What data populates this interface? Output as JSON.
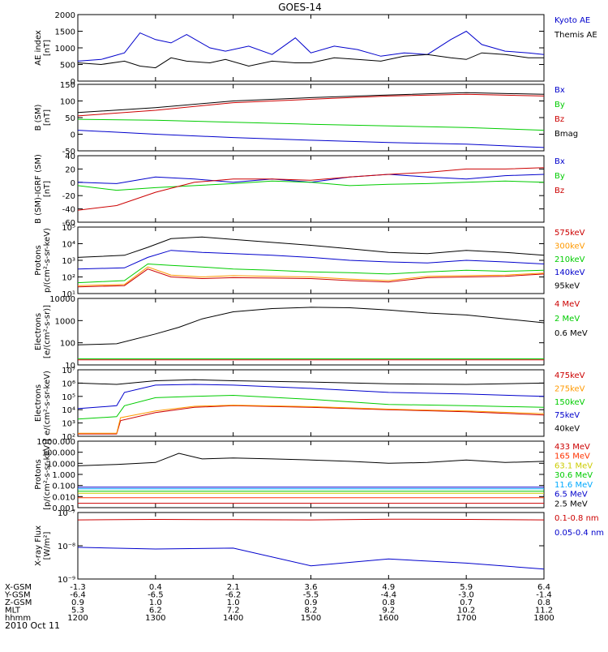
{
  "title": "GOES-14",
  "date_label": "2010 Oct 11",
  "chart_data": [
    {
      "type": "line",
      "id": "ae",
      "ylabel": [
        "AE index",
        "[nT]"
      ],
      "ylim": [
        0,
        2000
      ],
      "yticks": [
        "0",
        "500",
        "1000",
        "1500",
        "2000"
      ],
      "ytick_values": [
        0,
        500,
        1000,
        1500,
        2000
      ],
      "log": false,
      "series": [
        {
          "name": "Kyoto AE",
          "color": "#0000cc",
          "x": [
            12.0,
            12.3,
            12.6,
            12.8,
            13.0,
            13.2,
            13.4,
            13.7,
            13.9,
            14.2,
            14.5,
            14.8,
            15.0,
            15.3,
            15.6,
            15.9,
            16.2,
            16.5,
            16.8,
            17.0,
            17.2,
            17.5,
            17.8,
            18.0
          ],
          "values": [
            600,
            650,
            850,
            1450,
            1250,
            1150,
            1400,
            1000,
            900,
            1050,
            800,
            1300,
            850,
            1050,
            950,
            750,
            850,
            800,
            1250,
            1500,
            1100,
            900,
            850,
            800
          ]
        },
        {
          "name": "Themis AE",
          "color": "#000000",
          "x": [
            12.0,
            12.3,
            12.6,
            12.8,
            13.0,
            13.2,
            13.4,
            13.7,
            13.9,
            14.2,
            14.5,
            14.8,
            15.0,
            15.3,
            15.6,
            15.9,
            16.2,
            16.5,
            16.8,
            17.0,
            17.2,
            17.5,
            17.8,
            18.0
          ],
          "values": [
            550,
            500,
            600,
            450,
            400,
            700,
            600,
            550,
            650,
            450,
            600,
            550,
            550,
            700,
            650,
            600,
            750,
            800,
            700,
            650,
            850,
            800,
            700,
            700
          ]
        }
      ]
    },
    {
      "type": "line",
      "id": "bsm",
      "ylabel": [
        "B (SM)",
        "[nT]"
      ],
      "ylim": [
        -50,
        150
      ],
      "yticks": [
        "-50",
        "0",
        "50",
        "100",
        "150"
      ],
      "ytick_values": [
        -50,
        0,
        50,
        100,
        150
      ],
      "log": false,
      "series": [
        {
          "name": "Bx",
          "color": "#0000cc",
          "x": [
            12,
            13,
            14,
            15,
            16,
            17,
            18
          ],
          "values": [
            12,
            0,
            -10,
            -18,
            -25,
            -30,
            -40
          ]
        },
        {
          "name": "By",
          "color": "#00cc00",
          "x": [
            12,
            13,
            14,
            15,
            16,
            17,
            18
          ],
          "values": [
            45,
            42,
            36,
            30,
            25,
            20,
            12
          ]
        },
        {
          "name": "Bz",
          "color": "#cc0000",
          "x": [
            12,
            13,
            14,
            15,
            16,
            17,
            18
          ],
          "values": [
            55,
            72,
            95,
            105,
            115,
            120,
            115
          ]
        },
        {
          "name": "Bmag",
          "color": "#000000",
          "x": [
            12,
            13,
            14,
            15,
            16,
            17,
            18
          ],
          "values": [
            65,
            80,
            100,
            110,
            118,
            125,
            120
          ]
        }
      ]
    },
    {
      "type": "line",
      "id": "bdiff",
      "ylabel": [
        "B (SM)-IGRF (SM)",
        "[nT]"
      ],
      "ylim": [
        -60,
        40
      ],
      "yticks": [
        "-60",
        "-40",
        "-20",
        "0",
        "20",
        "40"
      ],
      "ytick_values": [
        -60,
        -40,
        -20,
        0,
        20,
        40
      ],
      "log": false,
      "series": [
        {
          "name": "Bx",
          "color": "#0000cc",
          "x": [
            12,
            12.5,
            13,
            13.5,
            14,
            14.5,
            15,
            15.5,
            16,
            16.5,
            17,
            17.5,
            18
          ],
          "values": [
            0,
            -2,
            8,
            5,
            0,
            5,
            0,
            8,
            12,
            8,
            5,
            10,
            12
          ]
        },
        {
          "name": "By",
          "color": "#00cc00",
          "x": [
            12,
            12.5,
            13,
            13.5,
            14,
            14.5,
            15,
            15.5,
            16,
            16.5,
            17,
            17.5,
            18
          ],
          "values": [
            -5,
            -12,
            -8,
            -5,
            -2,
            2,
            0,
            -5,
            -3,
            -2,
            0,
            2,
            0
          ]
        },
        {
          "name": "Bz",
          "color": "#cc0000",
          "x": [
            12,
            12.5,
            13,
            13.5,
            14,
            14.5,
            15,
            15.5,
            16,
            16.5,
            17,
            17.5,
            18
          ],
          "values": [
            -42,
            -35,
            -15,
            0,
            5,
            5,
            3,
            8,
            12,
            15,
            20,
            20,
            22
          ]
        }
      ]
    },
    {
      "type": "line",
      "id": "protons_kev",
      "ylabel": [
        "Protons",
        "p/(cm²-s-sr-keV)"
      ],
      "ylim": [
        10,
        100000
      ],
      "yticks": [
        "10¹",
        "10²",
        "10³",
        "10⁴",
        "10⁵"
      ],
      "ytick_values": [
        10,
        100,
        1000,
        10000,
        100000
      ],
      "log": true,
      "series": [
        {
          "name": "575keV",
          "color": "#cc0000",
          "x": [
            12,
            12.6,
            12.9,
            13.2,
            13.6,
            14,
            14.5,
            15,
            15.5,
            16,
            16.5,
            17,
            17.5,
            18
          ],
          "values": [
            25,
            30,
            300,
            100,
            80,
            90,
            85,
            80,
            60,
            50,
            90,
            100,
            110,
            150
          ]
        },
        {
          "name": "300keV",
          "color": "#ff9900",
          "x": [
            12,
            12.6,
            12.9,
            13.2,
            13.6,
            14,
            14.5,
            15,
            15.5,
            16,
            16.5,
            17,
            17.5,
            18
          ],
          "values": [
            30,
            35,
            400,
            130,
            100,
            120,
            110,
            100,
            75,
            60,
            110,
            120,
            130,
            170
          ]
        },
        {
          "name": "210keV",
          "color": "#00cc00",
          "x": [
            12,
            12.6,
            12.9,
            13.2,
            13.6,
            14,
            14.5,
            15,
            15.5,
            16,
            16.5,
            17,
            17.5,
            18
          ],
          "values": [
            45,
            60,
            600,
            500,
            400,
            300,
            250,
            200,
            180,
            150,
            200,
            250,
            220,
            250
          ]
        },
        {
          "name": "140keV",
          "color": "#0000cc",
          "x": [
            12,
            12.6,
            12.9,
            13.2,
            13.6,
            14,
            14.5,
            15,
            15.5,
            16,
            16.5,
            17,
            17.5,
            18
          ],
          "values": [
            300,
            350,
            1500,
            4000,
            3000,
            2500,
            2000,
            1500,
            1000,
            800,
            700,
            1000,
            800,
            600
          ]
        },
        {
          "name": "95keV",
          "color": "#000000",
          "x": [
            12,
            12.6,
            12.9,
            13.2,
            13.6,
            14,
            14.5,
            15,
            15.5,
            16,
            16.5,
            17,
            17.5,
            18
          ],
          "values": [
            1500,
            2000,
            6000,
            20000,
            25000,
            18000,
            12000,
            8000,
            5000,
            3000,
            2500,
            4000,
            3000,
            2000
          ]
        }
      ]
    },
    {
      "type": "line",
      "id": "electrons_mev",
      "ylabel": [
        "Electrons",
        "[e/(cm²-s-sr)]"
      ],
      "ylim": [
        10,
        10000
      ],
      "yticks": [
        "10",
        "100",
        "1000",
        "10000"
      ],
      "ytick_values": [
        10,
        100,
        1000,
        10000
      ],
      "log": true,
      "series": [
        {
          "name": "4 MeV",
          "color": "#cc0000",
          "x": [
            12,
            18
          ],
          "values": [
            17,
            17
          ]
        },
        {
          "name": "2 MeV",
          "color": "#00cc00",
          "x": [
            12,
            18
          ],
          "values": [
            19,
            19
          ]
        },
        {
          "name": "0.6 MeV",
          "color": "#000000",
          "x": [
            12,
            12.5,
            13,
            13.3,
            13.6,
            14,
            14.5,
            15,
            15.5,
            16,
            16.5,
            17,
            17.5,
            18
          ],
          "values": [
            80,
            90,
            250,
            500,
            1200,
            2500,
            3500,
            4000,
            3800,
            3000,
            2200,
            1800,
            1200,
            800
          ]
        }
      ]
    },
    {
      "type": "line",
      "id": "electrons_kev",
      "ylabel": [
        "Electrons",
        "e/(cm²-s-sr-keV)"
      ],
      "ylim": [
        100,
        10000000
      ],
      "yticks": [
        "10²",
        "10³",
        "10⁴",
        "10⁵",
        "10⁶",
        "10⁷"
      ],
      "ytick_values": [
        100,
        1000,
        10000,
        100000,
        1000000,
        10000000
      ],
      "log": true,
      "series": [
        {
          "name": "475keV",
          "color": "#cc0000",
          "x": [
            12,
            12.5,
            12.55,
            13,
            13.5,
            14,
            15,
            16,
            17,
            18
          ],
          "values": [
            150,
            150,
            1500,
            6000,
            15000,
            20000,
            15000,
            10000,
            7000,
            4000
          ]
        },
        {
          "name": "275keV",
          "color": "#ff9900",
          "x": [
            12,
            12.5,
            12.55,
            13,
            13.5,
            14,
            15,
            16,
            17,
            18
          ],
          "values": [
            170,
            170,
            2500,
            8000,
            18000,
            22000,
            17000,
            11000,
            8000,
            5000
          ]
        },
        {
          "name": "150keV",
          "color": "#00cc00",
          "x": [
            12,
            12.5,
            12.6,
            13,
            13.5,
            14,
            15,
            16,
            17,
            18
          ],
          "values": [
            2000,
            3000,
            20000,
            80000,
            100000,
            120000,
            60000,
            25000,
            20000,
            15000
          ]
        },
        {
          "name": "75keV",
          "color": "#0000cc",
          "x": [
            12,
            12.5,
            12.6,
            13,
            13.5,
            14,
            15,
            16,
            17,
            18
          ],
          "values": [
            12000,
            20000,
            200000,
            700000,
            800000,
            700000,
            400000,
            200000,
            150000,
            100000
          ]
        },
        {
          "name": "40keV",
          "color": "#000000",
          "x": [
            12,
            12.5,
            13,
            13.5,
            14,
            15,
            16,
            17,
            18
          ],
          "values": [
            1000000,
            800000,
            1500000,
            1800000,
            1500000,
            1200000,
            900000,
            800000,
            1000000
          ]
        }
      ]
    },
    {
      "type": "line",
      "id": "protons_mev",
      "ylabel": [
        "Protons",
        "[p/(cm²-s-sr-keV)]"
      ],
      "ylim": [
        0.001,
        1000
      ],
      "yticks": [
        "0.001",
        "0.010",
        "0.100",
        "1.000",
        "10.000",
        "100.000",
        "1000.000"
      ],
      "ytick_values": [
        0.001,
        0.01,
        0.1,
        1,
        10,
        100,
        1000
      ],
      "log": true,
      "series": [
        {
          "name": "433 MeV",
          "color": "#cc0000",
          "x": [
            12,
            18
          ],
          "values": [
            0.0025,
            0.0025
          ]
        },
        {
          "name": "165 MeV",
          "color": "#ff3300",
          "x": [
            12,
            18
          ],
          "values": [
            0.008,
            0.008
          ]
        },
        {
          "name": "63.1 MeV",
          "color": "#cccc00",
          "x": [
            12,
            18
          ],
          "values": [
            0.02,
            0.02
          ]
        },
        {
          "name": "30.6 MeV",
          "color": "#00cc00",
          "x": [
            12,
            18
          ],
          "values": [
            0.03,
            0.03
          ]
        },
        {
          "name": "11.6 MeV",
          "color": "#00aaff",
          "x": [
            12,
            18
          ],
          "values": [
            0.05,
            0.05
          ]
        },
        {
          "name": "6.5 MeV",
          "color": "#0000cc",
          "x": [
            12,
            18
          ],
          "values": [
            0.07,
            0.07
          ]
        },
        {
          "name": "2.5 MeV",
          "color": "#000000",
          "x": [
            12,
            12.5,
            13,
            13.3,
            13.6,
            14,
            14.5,
            15,
            15.5,
            16,
            16.5,
            17,
            17.5,
            18
          ],
          "values": [
            6,
            8,
            12,
            80,
            25,
            30,
            25,
            20,
            15,
            10,
            12,
            20,
            12,
            15
          ]
        }
      ]
    },
    {
      "type": "line",
      "id": "xray",
      "ylabel": [
        "X-ray Flux",
        "[W/m²]"
      ],
      "ylim": [
        1e-09,
        1e-07
      ],
      "yticks": [
        "10⁻⁹",
        "10⁻⁸",
        "10⁻⁷"
      ],
      "ytick_values": [
        1e-09,
        1e-08,
        1e-07
      ],
      "log": true,
      "series": [
        {
          "name": "0.1-0.8 nm",
          "color": "#cc0000",
          "x": [
            12,
            13,
            14,
            15,
            16,
            17,
            18
          ],
          "values": [
            6e-08,
            6.2e-08,
            6.1e-08,
            6e-08,
            6.3e-08,
            6.2e-08,
            6e-08
          ]
        },
        {
          "name": "0.05-0.4 nm",
          "color": "#0000cc",
          "x": [
            12,
            13,
            14,
            15,
            16,
            17,
            18
          ],
          "values": [
            9e-09,
            8e-09,
            8.5e-09,
            2.5e-09,
            4e-09,
            3e-09,
            2e-09
          ]
        }
      ]
    }
  ],
  "x_axis": {
    "ticks_hours": [
      12,
      13,
      14,
      15,
      16,
      17,
      18
    ],
    "rows": [
      {
        "label": "X-GSM",
        "values": [
          "-1.3",
          "0.4",
          "2.1",
          "3.6",
          "4.9",
          "5.9",
          "6.4"
        ]
      },
      {
        "label": "Y-GSM",
        "values": [
          "-6.4",
          "-6.5",
          "-6.2",
          "-5.5",
          "-4.4",
          "-3.0",
          "-1.4"
        ]
      },
      {
        "label": "Z-GSM",
        "values": [
          "0.9",
          "1.0",
          "1.0",
          "0.9",
          "0.8",
          "0.7",
          "0.8"
        ]
      },
      {
        "label": "MLT",
        "values": [
          "5.3",
          "6.2",
          "7.2",
          "8.2",
          "9.2",
          "10.2",
          "11.2"
        ]
      },
      {
        "label": "hhmm",
        "values": [
          "1200",
          "1300",
          "1400",
          "1500",
          "1600",
          "1700",
          "1800"
        ]
      }
    ]
  }
}
